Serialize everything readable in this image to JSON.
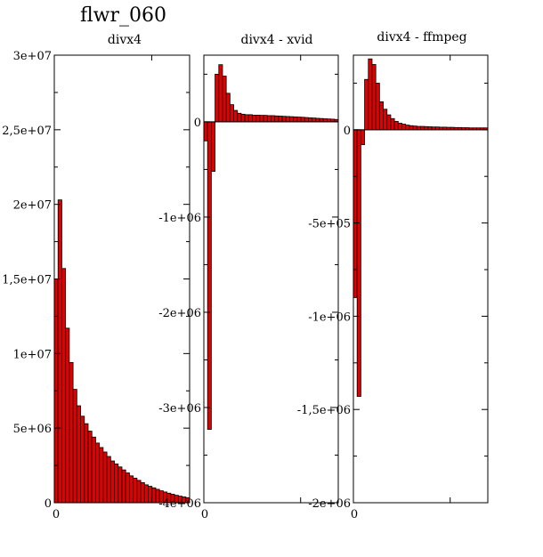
{
  "figure_title": "flwr_060",
  "colors": {
    "bar_fill": "#e00000",
    "bar_stroke": "#000000",
    "axis": "#000000",
    "background": "#ffffff"
  },
  "chart_data": [
    {
      "type": "bar",
      "title": "divx4",
      "xlabel": "",
      "ylabel": "",
      "x_tick_labels": [
        "0"
      ],
      "ylim": [
        0,
        30000000
      ],
      "y_ticks": [
        0,
        5000000,
        10000000,
        15000000,
        20000000,
        25000000,
        30000000
      ],
      "y_tick_labels": [
        "0",
        "5e+06",
        "1e+07",
        "1,5e+07",
        "2e+07",
        "2,5e+07",
        "3e+07"
      ],
      "bin_count": 36,
      "values": [
        15000000,
        20300000,
        15700000,
        11700000,
        9400000,
        7600000,
        6500000,
        5800000,
        5300000,
        4800000,
        4400000,
        4000000,
        3700000,
        3400000,
        3100000,
        2800000,
        2600000,
        2400000,
        2200000,
        2000000,
        1800000,
        1650000,
        1500000,
        1350000,
        1200000,
        1100000,
        1000000,
        900000,
        800000,
        720000,
        640000,
        570000,
        500000,
        440000,
        390000,
        340000
      ]
    },
    {
      "type": "bar",
      "title": "divx4 - xvid",
      "xlabel": "",
      "ylabel": "",
      "x_tick_labels": [
        "0"
      ],
      "ylim": [
        -4000000,
        700000
      ],
      "y_ticks": [
        -4000000,
        -3000000,
        -2000000,
        -1000000,
        0
      ],
      "y_tick_labels": [
        "-4e+06",
        "-3e+06",
        "-2e+06",
        "-1e+06",
        "0"
      ],
      "bin_count": 36,
      "values": [
        -200000,
        -3230000,
        -520000,
        500000,
        600000,
        480000,
        300000,
        180000,
        120000,
        90000,
        80000,
        75000,
        75000,
        70000,
        70000,
        68000,
        68000,
        65000,
        65000,
        62000,
        60000,
        58000,
        56000,
        54000,
        52000,
        50000,
        48000,
        45000,
        42000,
        40000,
        37000,
        35000,
        32000,
        30000,
        28000,
        25000
      ]
    },
    {
      "type": "bar",
      "title": "divx4 - ffmpeg",
      "xlabel": "",
      "ylabel": "",
      "x_tick_labels": [
        "0"
      ],
      "ylim": [
        -2000000,
        400000
      ],
      "y_ticks": [
        -2000000,
        -1500000,
        -1000000,
        -500000,
        0
      ],
      "y_tick_labels": [
        "-2e+06",
        "-1,5e+06",
        "-1e+06",
        "-5e+05",
        "0"
      ],
      "bin_count": 36,
      "values": [
        -900000,
        -1430000,
        -80000,
        270000,
        380000,
        350000,
        250000,
        150000,
        110000,
        80000,
        60000,
        45000,
        35000,
        30000,
        25000,
        22000,
        20000,
        18000,
        18000,
        17000,
        16000,
        15000,
        15000,
        14000,
        14000,
        13000,
        13000,
        12000,
        12000,
        11000,
        11000,
        10000,
        10000,
        10000,
        10000,
        10000
      ]
    }
  ]
}
